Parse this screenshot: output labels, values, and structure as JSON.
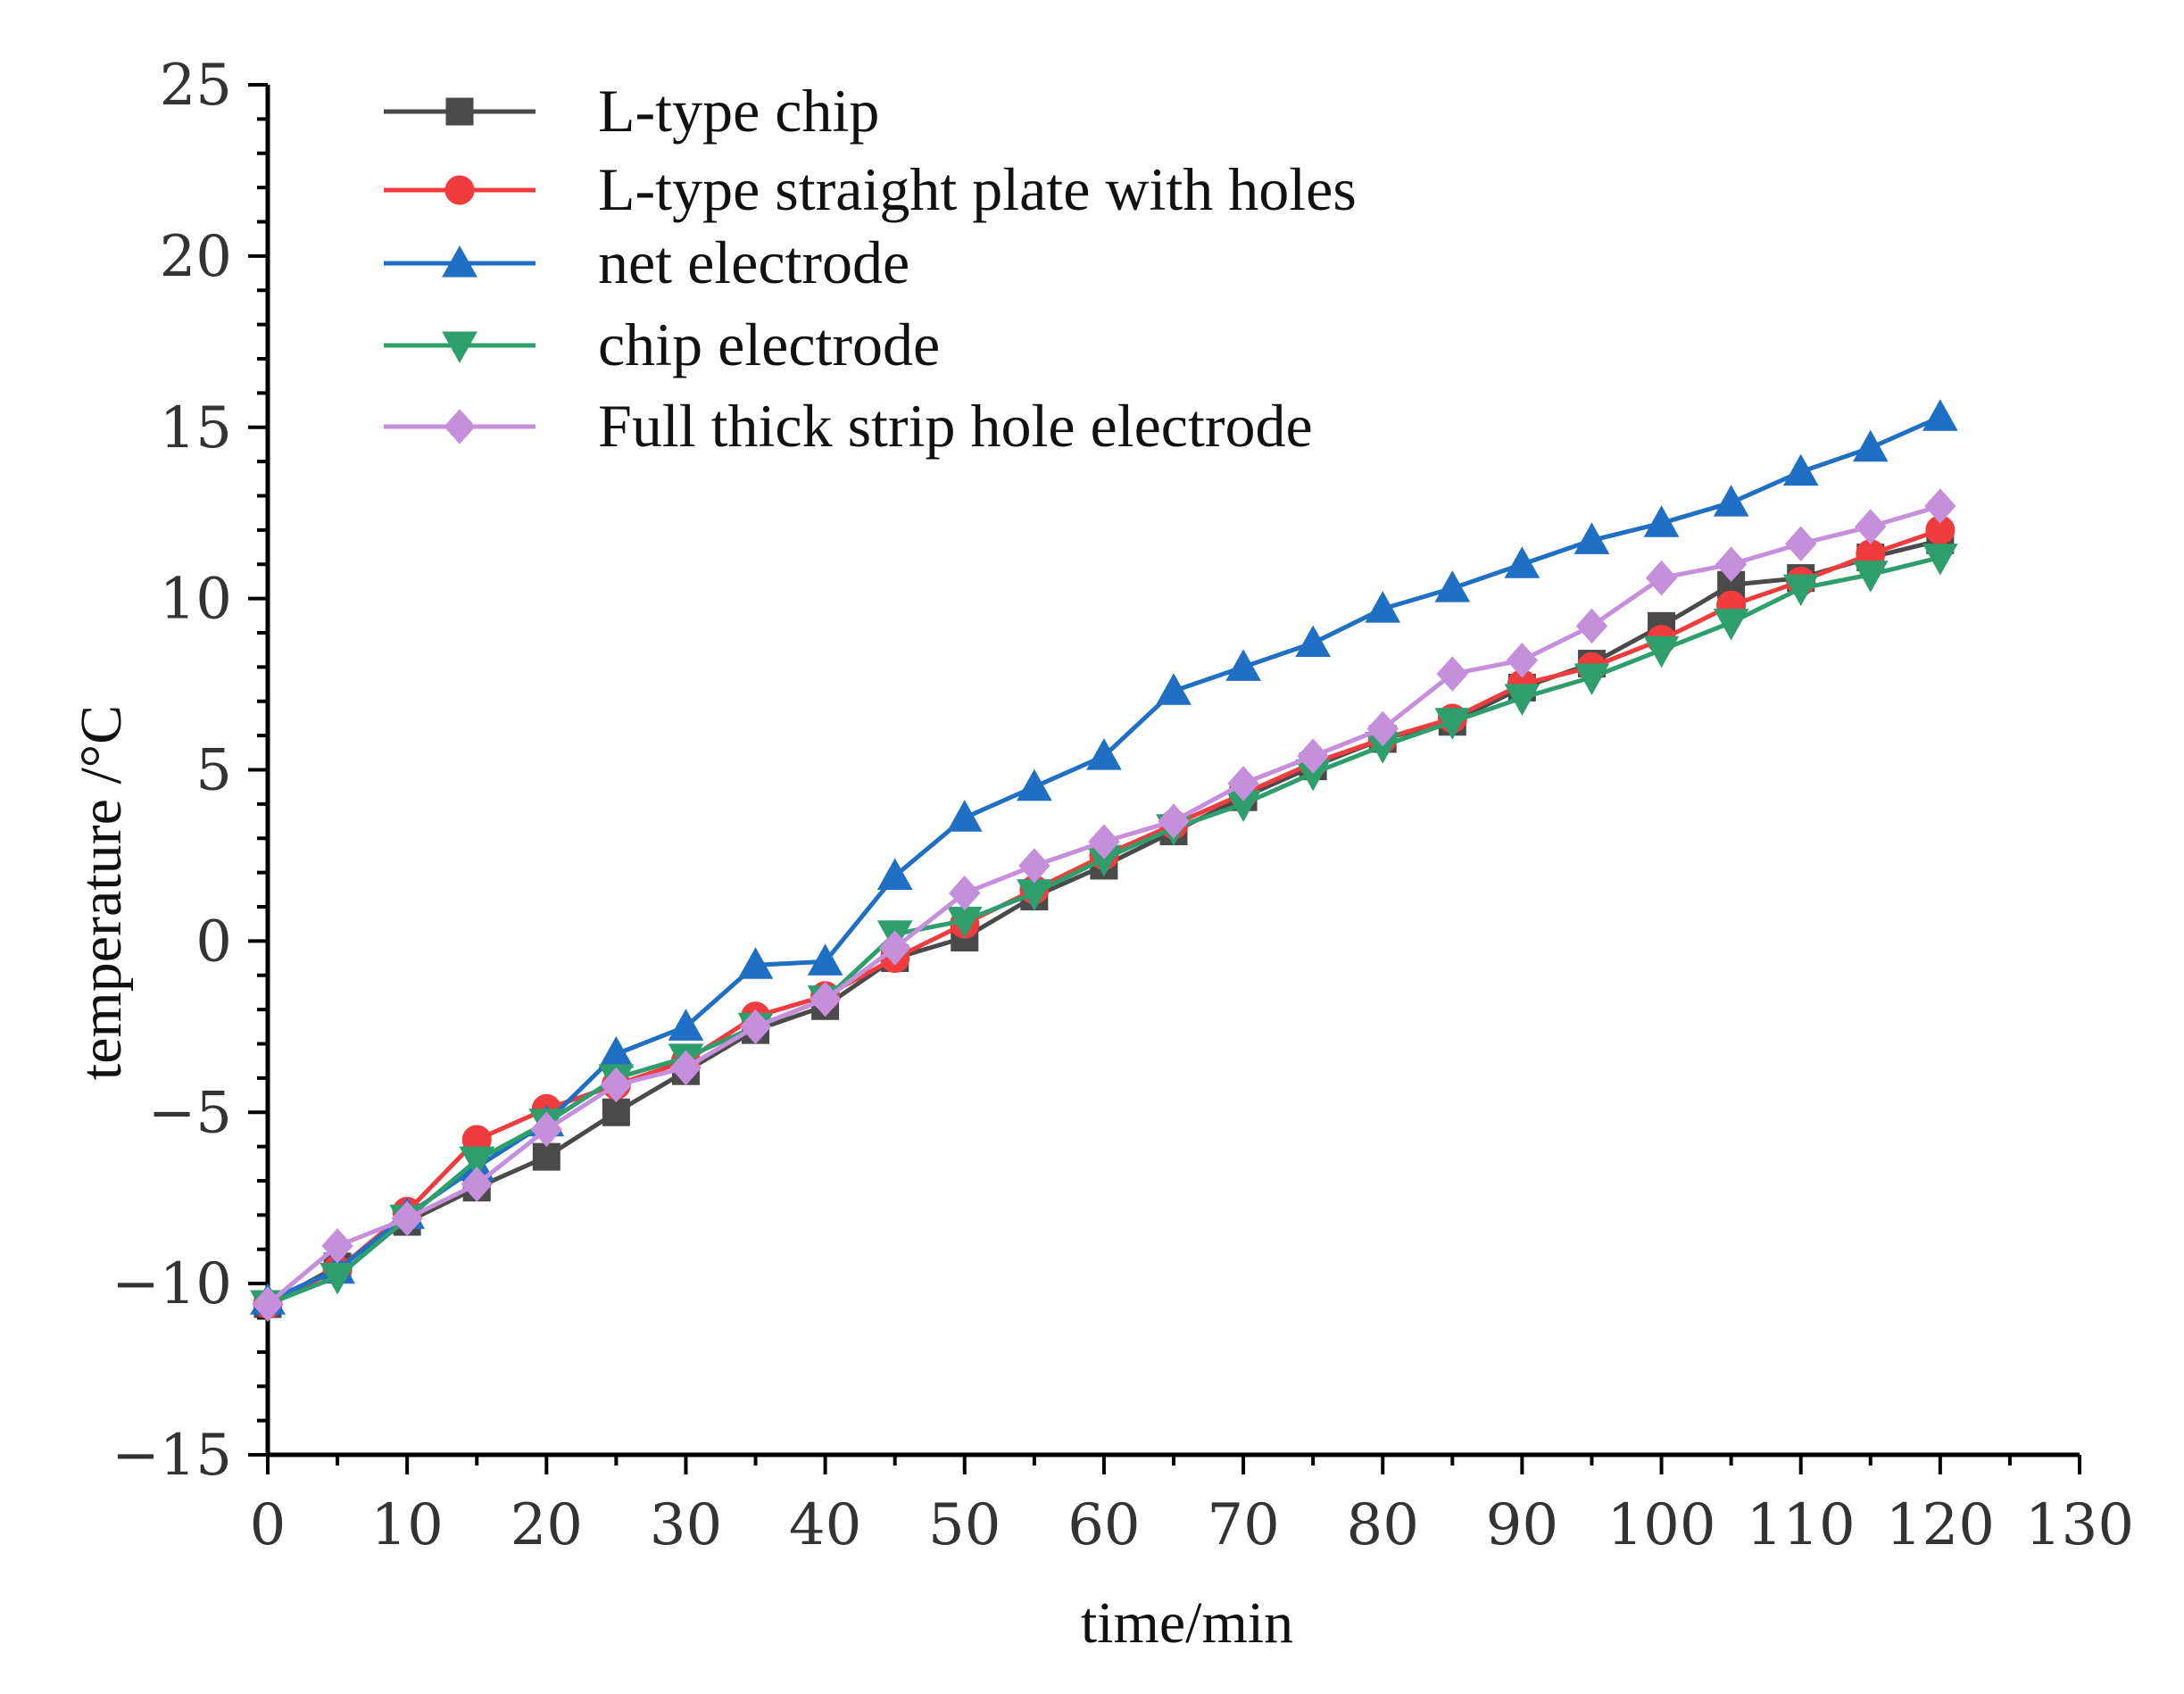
{
  "chart_data": {
    "type": "line",
    "title": "",
    "xlabel": "time/min",
    "ylabel": "temperature /°C",
    "xlim": [
      0,
      130
    ],
    "ylim": [
      -15,
      25
    ],
    "x_ticks": [
      0,
      10,
      20,
      30,
      40,
      50,
      60,
      70,
      80,
      90,
      100,
      110,
      120,
      130
    ],
    "y_ticks": [
      -15,
      -10,
      -5,
      0,
      5,
      10,
      15,
      20,
      25
    ],
    "grid": false,
    "legend_position": "top-left",
    "x": [
      0,
      5,
      10,
      15,
      20,
      25,
      30,
      35,
      40,
      45,
      50,
      55,
      60,
      65,
      70,
      75,
      80,
      85,
      90,
      95,
      100,
      105,
      110,
      115,
      120
    ],
    "series": [
      {
        "name": "L-type chip",
        "color": "#4a4a4a",
        "marker": "square",
        "values": [
          -10.6,
          -9.5,
          -8.2,
          -7.2,
          -6.3,
          -5.0,
          -3.8,
          -2.6,
          -1.9,
          -0.5,
          0.1,
          1.3,
          2.2,
          3.2,
          4.2,
          5.1,
          5.9,
          6.4,
          7.4,
          8.1,
          9.2,
          10.4,
          10.6,
          11.2,
          11.7
        ]
      },
      {
        "name": "L-type straight plate with holes",
        "color": "#f03c3c",
        "marker": "circle",
        "values": [
          -10.6,
          -9.6,
          -7.9,
          -5.8,
          -4.9,
          -4.2,
          -3.5,
          -2.2,
          -1.6,
          -0.5,
          0.5,
          1.5,
          2.5,
          3.4,
          4.3,
          5.2,
          5.9,
          6.5,
          7.5,
          8.0,
          8.8,
          9.8,
          10.5,
          11.3,
          12.0
        ]
      },
      {
        "name": "net electrode",
        "color": "#1f6fc4",
        "marker": "triangle-up",
        "values": [
          -10.5,
          -9.6,
          -8.0,
          -6.6,
          -5.3,
          -3.3,
          -2.5,
          -0.7,
          -0.6,
          1.9,
          3.6,
          4.5,
          5.4,
          7.3,
          8.0,
          8.7,
          9.7,
          10.3,
          11.0,
          11.7,
          12.2,
          12.8,
          13.7,
          14.4,
          15.3
        ]
      },
      {
        "name": "chip electrode",
        "color": "#2e9e6c",
        "marker": "triangle-down",
        "values": [
          -10.6,
          -9.8,
          -8.1,
          -6.4,
          -5.3,
          -4.0,
          -3.4,
          -2.5,
          -1.7,
          0.2,
          0.6,
          1.4,
          2.4,
          3.3,
          4.0,
          4.9,
          5.7,
          6.4,
          7.1,
          7.7,
          8.5,
          9.3,
          10.3,
          10.7,
          11.2
        ]
      },
      {
        "name": "Full thick strip hole electrode",
        "color": "#c58fdc",
        "marker": "diamond",
        "values": [
          -10.6,
          -8.9,
          -8.1,
          -7.1,
          -5.5,
          -4.2,
          -3.7,
          -2.5,
          -1.7,
          -0.2,
          1.4,
          2.2,
          2.9,
          3.5,
          4.6,
          5.4,
          6.2,
          7.8,
          8.2,
          9.2,
          10.6,
          11.0,
          11.6,
          12.1,
          12.7
        ]
      }
    ]
  }
}
